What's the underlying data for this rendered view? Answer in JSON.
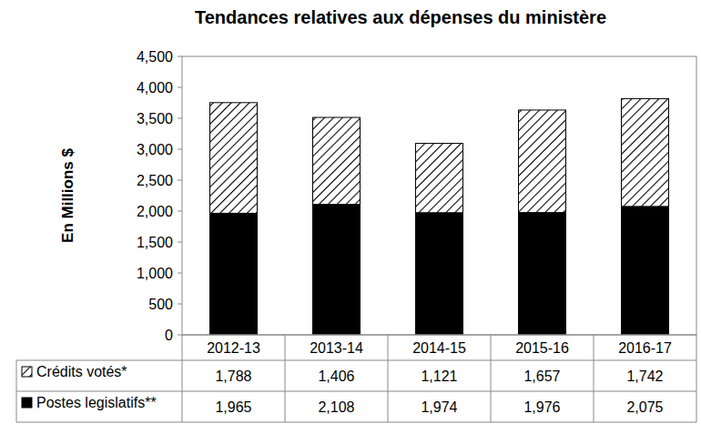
{
  "chart_data": {
    "type": "bar",
    "title": "Tendances relatives aux dépenses du ministère",
    "y_label": "En Millions $",
    "categories": [
      "2012-13",
      "2013-14",
      "2014-15",
      "2015-16",
      "2016-17"
    ],
    "series": [
      {
        "name": "Crédits votés*",
        "color": "#000000",
        "values": [
          1788,
          1406,
          1121,
          1657,
          1742
        ],
        "value_labels": [
          "1,788",
          "1,406",
          "1,121",
          "1,657",
          "1,742"
        ]
      },
      {
        "name": "Postes legislatifs**",
        "color": "#000000",
        "values": [
          1965,
          2108,
          1974,
          1976,
          2075
        ],
        "value_labels": [
          "1,965",
          "2,108",
          "1,974",
          "1,976",
          "2,075"
        ]
      }
    ],
    "stacked": true,
    "grid": false,
    "ylim": [
      0,
      4500
    ],
    "yticks": [
      0,
      500,
      {
        "value": 1000,
        "label": "1,000"
      },
      {
        "value": 1500,
        "label": "1,500"
      },
      {
        "value": 2000,
        "label": "2,000"
      },
      {
        "value": 2500,
        "label": "2,500"
      },
      {
        "value": 3000,
        "label": "3,000"
      },
      {
        "value": 3500,
        "label": "3,500"
      },
      {
        "value": 4000,
        "label": "4,000"
      },
      {
        "value": 4500,
        "label": "4,500"
      }
    ]
  }
}
